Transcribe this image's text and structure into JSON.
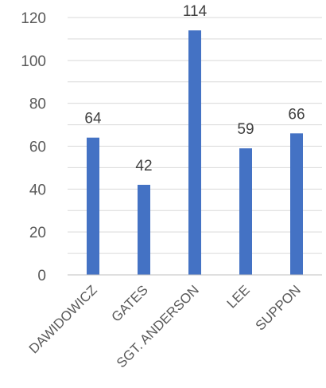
{
  "chart_data": {
    "type": "bar",
    "categories": [
      "DAWIDOWICZ",
      "GATES",
      "SGT. ANDERSON",
      "LEE",
      "SUPPON"
    ],
    "values": [
      64,
      42,
      114,
      59,
      66
    ],
    "data_labels": [
      "64",
      "42",
      "114",
      "59",
      "66"
    ],
    "title": "",
    "xlabel": "",
    "ylabel": "",
    "ylim": [
      0,
      120
    ],
    "yticks": [
      0,
      20,
      40,
      60,
      80,
      100,
      120
    ],
    "ytick_labels": [
      "0",
      "20",
      "40",
      "60",
      "80",
      "100",
      "120"
    ],
    "grid": true,
    "legend": "none",
    "bar_color": "#4472c4"
  }
}
